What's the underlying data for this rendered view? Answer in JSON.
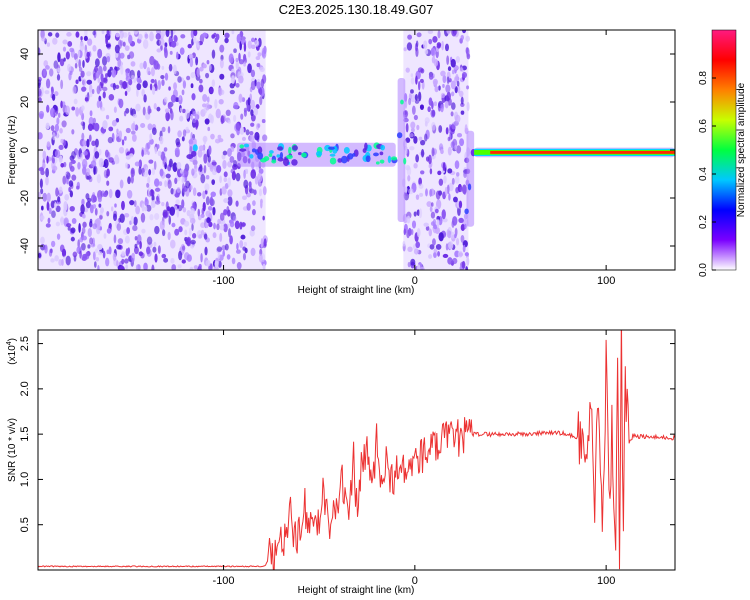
{
  "colors": {
    "spectrogram": [
      "#d9c8ff",
      "#c8a8ff",
      "#a87cff",
      "#8a55f2",
      "#6e2fe6",
      "#4b16d8"
    ],
    "snr_line": "#ec3232",
    "colorbar": [
      "#ffffff",
      "#7a00ff",
      "#0000ff",
      "#00c8ff",
      "#00ff40",
      "#c8ff00",
      "#ff8000",
      "#ff0000",
      "#ff1a80"
    ]
  },
  "chart_data": [
    {
      "type": "heatmap",
      "title": "C2E3.2025.130.18.49.G07",
      "xlabel": "Height of straight line (km)",
      "ylabel": "Frequency (Hz)",
      "xlim": [
        -197,
        136
      ],
      "ylim": [
        -50,
        50
      ],
      "xticks": [
        -100,
        0,
        100
      ],
      "xtick_labels": [
        "-100",
        "0",
        "100"
      ],
      "yticks": [
        -40,
        -20,
        0,
        20,
        40
      ],
      "ytick_labels": [
        "-40",
        "-20",
        "0",
        "20",
        "40"
      ],
      "colorbar": {
        "label": "Normalized spectral amplitude",
        "range": [
          0,
          1
        ],
        "ticks": [
          0,
          0.2,
          0.4,
          0.6,
          0.8
        ],
        "tick_labels": [
          "0.0",
          "0.2",
          "0.4",
          "0.6",
          "0.8"
        ]
      },
      "noise_regions": [
        {
          "x": [
            -197,
            -78
          ],
          "y": [
            -50,
            50
          ],
          "level": 0.1
        },
        {
          "x": [
            -6,
            28
          ],
          "y": [
            -50,
            50
          ],
          "level": 0.1
        }
      ],
      "signal_segments": [
        {
          "x": [
            -118,
            -114
          ],
          "freq_center": 0,
          "freq_width": 10,
          "level": 0.3
        },
        {
          "x": [
            -93,
            -10
          ],
          "freq_center": -2,
          "freq_width": 10,
          "level": 0.3
        },
        {
          "x": [
            -9,
            -5
          ],
          "freq_center": 0,
          "freq_width": 60,
          "level": 0.3
        },
        {
          "x": [
            27,
            31
          ],
          "freq_center": -12,
          "freq_width": 40,
          "level": 0.3
        },
        {
          "x": [
            31,
            136
          ],
          "freq_center": -1,
          "freq_width": 4,
          "level": 0.6
        }
      ]
    },
    {
      "type": "line",
      "xlabel": "Height of straight line (km)",
      "ylabel": "SNR (10 * v/v)",
      "y_multiplier": "(x10^4)",
      "y_multiplier_base": "(x10",
      "y_multiplier_exp": "4",
      "xlim": [
        -197,
        136
      ],
      "ylim": [
        0,
        2.65
      ],
      "xticks": [
        -100,
        0,
        100
      ],
      "xtick_labels": [
        "-100",
        "0",
        "100"
      ],
      "yticks": [
        0.5,
        1.0,
        1.5,
        2.0,
        2.5
      ],
      "ytick_labels": [
        "0.5",
        "1.0",
        "1.5",
        "2.0",
        "2.5"
      ],
      "series": [
        {
          "x": [
            -197,
            -180,
            -160,
            -140,
            -120,
            -100,
            -90,
            -80,
            -78,
            -75,
            -72,
            -70,
            -67,
            -65,
            -62,
            -60,
            -58,
            -55,
            -52,
            -50,
            -48,
            -45,
            -42,
            -40,
            -38,
            -35,
            -32,
            -30,
            -28,
            -25,
            -22,
            -20,
            -18,
            -15,
            -12,
            -10,
            -8,
            -5,
            -2,
            0,
            3,
            6,
            10,
            14,
            18,
            22,
            26,
            30,
            35,
            40,
            50,
            60,
            70,
            80,
            85,
            88,
            90,
            92,
            94,
            96,
            98,
            100,
            102,
            103,
            105,
            106,
            107,
            108,
            109,
            110,
            112,
            114,
            120,
            130,
            136
          ],
          "y": [
            0.04,
            0.04,
            0.04,
            0.04,
            0.04,
            0.04,
            0.04,
            0.04,
            0.05,
            0.2,
            0.15,
            0.3,
            0.35,
            0.6,
            0.3,
            0.5,
            0.8,
            0.4,
            0.6,
            0.5,
            0.9,
            0.5,
            0.8,
            0.7,
            1.0,
            0.5,
            1.2,
            0.6,
            1.1,
            1.3,
            0.9,
            1.5,
            0.8,
            1.2,
            1.0,
            1.1,
            1.05,
            1.1,
            1.15,
            1.2,
            1.25,
            1.3,
            1.35,
            1.4,
            1.45,
            1.45,
            1.48,
            1.5,
            1.5,
            1.5,
            1.5,
            1.5,
            1.52,
            1.5,
            1.45,
            1.6,
            1.0,
            1.8,
            0.8,
            2.0,
            0.7,
            2.2,
            0.8,
            1.5,
            0.3,
            2.4,
            0.2,
            2.65,
            0.4,
            2.1,
            1.4,
            1.48,
            1.47,
            1.46,
            1.46
          ]
        }
      ]
    }
  ]
}
